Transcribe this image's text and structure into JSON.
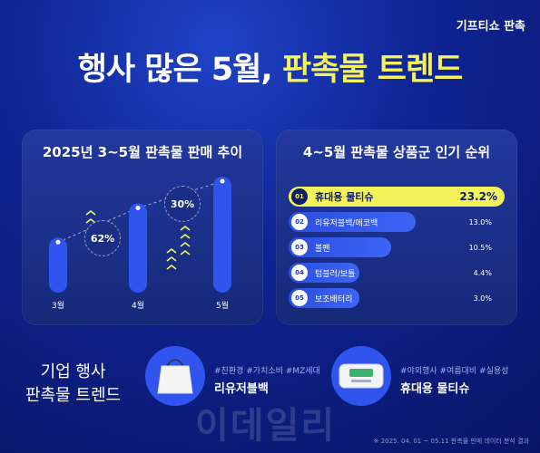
{
  "brand": "기프티쇼 판촉",
  "headline": {
    "normal": "행사 많은 5월,",
    "highlight": "판촉물 트렌드"
  },
  "left_panel": {
    "title": "2025년 3~5월 판촉물 판매 추이"
  },
  "right_panel": {
    "title": "4~5월 판촉물 상품군 인기 순위"
  },
  "chart_data": {
    "type": "bar",
    "categories": [
      "3월",
      "4월",
      "5월"
    ],
    "values": [
      1.0,
      1.62,
      2.106
    ],
    "growth_labels": [
      "62%",
      "30%"
    ],
    "title": "2025년 3~5월 판촉물 판매 추이"
  },
  "ranking": [
    {
      "num": "01",
      "label": "휴대용 물티슈",
      "pct": "23.2%",
      "share": 23.2
    },
    {
      "num": "02",
      "label": "리유저블백/에코백",
      "pct": "13.0%",
      "share": 13.0
    },
    {
      "num": "03",
      "label": "볼펜",
      "pct": "10.5%",
      "share": 10.5
    },
    {
      "num": "04",
      "label": "텀블러/보틀",
      "pct": "4.4%",
      "share": 4.4
    },
    {
      "num": "05",
      "label": "보조배터리",
      "pct": "3.0%",
      "share": 3.0
    }
  ],
  "bottom": {
    "title_line1": "기업 행사",
    "title_line2": "판촉물 트렌드",
    "item1": {
      "tags": "#친환경 #가치소비 #MZ세대",
      "name": "리유저블백"
    },
    "item2": {
      "tags": "#야외행사 #여름대비 #실용성",
      "name": "휴대용 물티슈"
    }
  },
  "watermark": "이데일리",
  "footnote": "※ 2025. 04. 01 ~ 05.11 판촉물 판매 데이터 분석 결과",
  "colors": {
    "accent": "#f4f35a",
    "bar": "#2f55ee",
    "background": "#0f2493"
  }
}
